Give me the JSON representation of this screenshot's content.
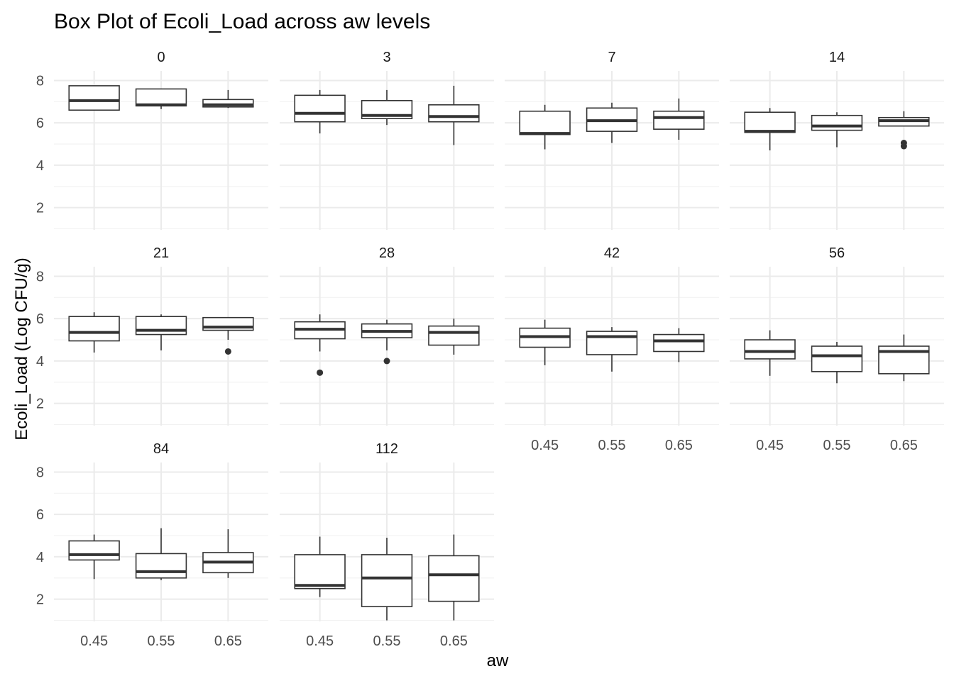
{
  "chart_data": {
    "type": "box",
    "title": "Box Plot of Ecoli_Load across aw levels",
    "xlabel": "aw",
    "ylabel": "Ecoli_Load (Log CFU/g)",
    "ylim": [
      0.95,
      8.45
    ],
    "y_ticks": [
      "2",
      "4",
      "6",
      "8"
    ],
    "x_categories": [
      "0.45",
      "0.55",
      "0.65"
    ],
    "grid": true,
    "facets": [
      {
        "label": "0",
        "boxes": [
          {
            "aw": "0.45",
            "min": 6.6,
            "q1": 6.6,
            "median": 7.05,
            "q3": 7.75,
            "max": 7.75,
            "outliers": []
          },
          {
            "aw": "0.55",
            "min": 6.65,
            "q1": 6.8,
            "median": 6.85,
            "q3": 7.6,
            "max": 7.6,
            "outliers": []
          },
          {
            "aw": "0.65",
            "min": 6.7,
            "q1": 6.75,
            "median": 6.85,
            "q3": 7.1,
            "max": 7.55,
            "outliers": []
          }
        ]
      },
      {
        "label": "3",
        "boxes": [
          {
            "aw": "0.45",
            "min": 5.5,
            "q1": 6.05,
            "median": 6.45,
            "q3": 7.3,
            "max": 7.55,
            "outliers": []
          },
          {
            "aw": "0.55",
            "min": 5.9,
            "q1": 6.2,
            "median": 6.35,
            "q3": 7.05,
            "max": 7.55,
            "outliers": []
          },
          {
            "aw": "0.65",
            "min": 4.95,
            "q1": 6.05,
            "median": 6.3,
            "q3": 6.85,
            "max": 7.75,
            "outliers": []
          }
        ]
      },
      {
        "label": "7",
        "boxes": [
          {
            "aw": "0.45",
            "min": 4.75,
            "q1": 5.45,
            "median": 5.5,
            "q3": 6.55,
            "max": 6.85,
            "outliers": []
          },
          {
            "aw": "0.55",
            "min": 5.05,
            "q1": 5.6,
            "median": 6.1,
            "q3": 6.7,
            "max": 6.95,
            "outliers": []
          },
          {
            "aw": "0.65",
            "min": 5.2,
            "q1": 5.7,
            "median": 6.25,
            "q3": 6.55,
            "max": 7.15,
            "outliers": []
          }
        ]
      },
      {
        "label": "14",
        "boxes": [
          {
            "aw": "0.45",
            "min": 4.7,
            "q1": 5.55,
            "median": 5.6,
            "q3": 6.5,
            "max": 6.7,
            "outliers": []
          },
          {
            "aw": "0.55",
            "min": 4.85,
            "q1": 5.65,
            "median": 5.85,
            "q3": 6.35,
            "max": 6.5,
            "outliers": []
          },
          {
            "aw": "0.65",
            "min": 5.85,
            "q1": 5.85,
            "median": 6.1,
            "q3": 6.25,
            "max": 6.55,
            "outliers": [
              5.05,
              4.9
            ]
          }
        ]
      },
      {
        "label": "21",
        "boxes": [
          {
            "aw": "0.45",
            "min": 4.4,
            "q1": 4.95,
            "median": 5.35,
            "q3": 6.1,
            "max": 6.3,
            "outliers": []
          },
          {
            "aw": "0.55",
            "min": 4.5,
            "q1": 5.25,
            "median": 5.45,
            "q3": 6.1,
            "max": 6.2,
            "outliers": []
          },
          {
            "aw": "0.65",
            "min": 5.0,
            "q1": 5.45,
            "median": 5.6,
            "q3": 6.05,
            "max": 6.05,
            "outliers": [
              4.45
            ]
          }
        ]
      },
      {
        "label": "28",
        "boxes": [
          {
            "aw": "0.45",
            "min": 4.45,
            "q1": 5.05,
            "median": 5.5,
            "q3": 5.85,
            "max": 6.2,
            "outliers": [
              3.45
            ]
          },
          {
            "aw": "0.55",
            "min": 4.5,
            "q1": 5.1,
            "median": 5.4,
            "q3": 5.75,
            "max": 5.95,
            "outliers": [
              4.0
            ]
          },
          {
            "aw": "0.65",
            "min": 4.3,
            "q1": 4.75,
            "median": 5.35,
            "q3": 5.65,
            "max": 6.0,
            "outliers": []
          }
        ]
      },
      {
        "label": "42",
        "boxes": [
          {
            "aw": "0.45",
            "min": 3.8,
            "q1": 4.65,
            "median": 5.15,
            "q3": 5.55,
            "max": 5.95,
            "outliers": []
          },
          {
            "aw": "0.55",
            "min": 3.5,
            "q1": 4.3,
            "median": 5.15,
            "q3": 5.4,
            "max": 5.6,
            "outliers": []
          },
          {
            "aw": "0.65",
            "min": 3.95,
            "q1": 4.45,
            "median": 4.95,
            "q3": 5.25,
            "max": 5.55,
            "outliers": []
          }
        ]
      },
      {
        "label": "56",
        "boxes": [
          {
            "aw": "0.45",
            "min": 3.3,
            "q1": 4.1,
            "median": 4.45,
            "q3": 5.0,
            "max": 5.45,
            "outliers": []
          },
          {
            "aw": "0.55",
            "min": 2.95,
            "q1": 3.5,
            "median": 4.25,
            "q3": 4.7,
            "max": 4.9,
            "outliers": []
          },
          {
            "aw": "0.65",
            "min": 3.05,
            "q1": 3.4,
            "median": 4.45,
            "q3": 4.7,
            "max": 5.25,
            "outliers": []
          }
        ]
      },
      {
        "label": "84",
        "boxes": [
          {
            "aw": "0.45",
            "min": 2.95,
            "q1": 3.85,
            "median": 4.1,
            "q3": 4.75,
            "max": 5.05,
            "outliers": []
          },
          {
            "aw": "0.55",
            "min": 2.9,
            "q1": 3.0,
            "median": 3.3,
            "q3": 4.15,
            "max": 5.35,
            "outliers": []
          },
          {
            "aw": "0.65",
            "min": 3.0,
            "q1": 3.25,
            "median": 3.75,
            "q3": 4.2,
            "max": 5.3,
            "outliers": []
          }
        ]
      },
      {
        "label": "112",
        "boxes": [
          {
            "aw": "0.45",
            "min": 2.1,
            "q1": 2.5,
            "median": 2.65,
            "q3": 4.1,
            "max": 4.95,
            "outliers": []
          },
          {
            "aw": "0.55",
            "min": 1.0,
            "q1": 1.65,
            "median": 3.0,
            "q3": 4.1,
            "max": 4.9,
            "outliers": []
          },
          {
            "aw": "0.65",
            "min": 1.0,
            "q1": 1.9,
            "median": 3.15,
            "q3": 4.05,
            "max": 5.05,
            "outliers": []
          }
        ]
      }
    ]
  }
}
